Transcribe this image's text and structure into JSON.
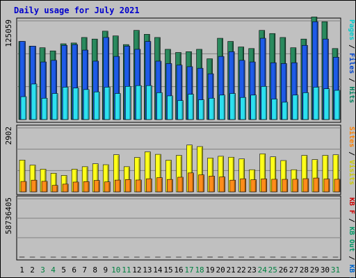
{
  "chart_data": {
    "type": "bar",
    "title": "Daily usage for July 2021",
    "categories": [
      "1",
      "2",
      "3",
      "4",
      "5",
      "6",
      "7",
      "8",
      "9",
      "10",
      "11",
      "12",
      "13",
      "14",
      "15",
      "16",
      "17",
      "18",
      "19",
      "20",
      "21",
      "22",
      "23",
      "24",
      "25",
      "26",
      "27",
      "28",
      "29",
      "30",
      "31"
    ],
    "weekend_categories": [
      "3",
      "4",
      "10",
      "11",
      "17",
      "18",
      "24",
      "25",
      "31"
    ],
    "panels": [
      {
        "id": "top",
        "max_label": "125059",
        "ylim": [
          0,
          125059
        ],
        "legend": [
          {
            "text": "Hits",
            "color": "#00805c"
          },
          {
            "text": " / ",
            "color": "#000000"
          },
          {
            "text": "Files",
            "color": "#0044cc"
          },
          {
            "text": " / ",
            "color": "#000000"
          },
          {
            "text": "Pages",
            "color": "#00cccc"
          }
        ],
        "series": [
          {
            "name": "Hits",
            "color": "#2a8a5e",
            "values": [
              99000,
              93000,
              91000,
              87000,
              96000,
              97000,
              104000,
              102000,
              112000,
              106000,
              95000,
              113000,
              108000,
              104000,
              89000,
              85000,
              86000,
              89000,
              77000,
              103000,
              99000,
              92000,
              90000,
              113000,
              109000,
              104000,
              91000,
              102000,
              130000,
              124000,
              90000
            ]
          },
          {
            "name": "Files",
            "color": "#1e5be8",
            "values": [
              99000,
              93000,
              73000,
              75000,
              94000,
              95000,
              88000,
              74000,
              104000,
              80000,
              93000,
              89000,
              99000,
              74000,
              71000,
              69000,
              67000,
              65000,
              58000,
              80000,
              86000,
              75000,
              73000,
              103000,
              72000,
              71000,
              72000,
              94000,
              124000,
              102000,
              79000
            ]
          },
          {
            "name": "Pages",
            "color": "#2ce0f0",
            "values": [
              29000,
              45000,
              27000,
              33000,
              41000,
              40000,
              38000,
              35000,
              41000,
              33000,
              42000,
              43000,
              43000,
              34000,
              30000,
              24000,
              32000,
              25000,
              27000,
              31000,
              33000,
              28000,
              31000,
              42000,
              26000,
              22000,
              31000,
              34000,
              41000,
              39000,
              37000
            ]
          }
        ]
      },
      {
        "id": "middle",
        "max_label": "2902",
        "ylim": [
          0,
          2902
        ],
        "legend": [
          {
            "text": "Visits",
            "color": "#cccc00"
          },
          {
            "text": " / ",
            "color": "#000000"
          },
          {
            "text": "Sites",
            "color": "#ff8000"
          }
        ],
        "series": [
          {
            "name": "Visits",
            "color": "#ffff1a",
            "values": [
              1440,
              1213,
              1027,
              843,
              743,
              1027,
              1140,
              1273,
              1230,
              1683,
              1140,
              1557,
              1813,
              1700,
              1433,
              1653,
              2123,
              2053,
              1533,
              1613,
              1570,
              1493,
              1003,
              1723,
              1587,
              1420,
              1003,
              1653,
              1463,
              1653,
              1680
            ]
          },
          {
            "name": "Sites",
            "color": "#ff8c1a",
            "values": [
              470,
              530,
              477,
              293,
              350,
              443,
              463,
              517,
              450,
              533,
              557,
              537,
              593,
              643,
              563,
              663,
              857,
              770,
              713,
              677,
              530,
              593,
              550,
              590,
              570,
              567,
              570,
              597,
              627,
              583,
              570
            ]
          }
        ]
      },
      {
        "id": "bottom",
        "max_label": "58736405",
        "ylim": [
          0,
          58736405
        ],
        "legend": [
          {
            "text": "KB In",
            "color": "#0066cc"
          },
          {
            "text": " / ",
            "color": "#000000"
          },
          {
            "text": "KB Out",
            "color": "#009966"
          },
          {
            "text": " / ",
            "color": "#000000"
          },
          {
            "text": "KB F",
            "color": "#cc0000"
          }
        ],
        "series": [
          {
            "name": "KB F",
            "color": "#f01a1a",
            "values": [
              77300,
              24700,
              17700,
              14200,
              16100,
              73700,
              26100,
              11500,
              62200,
              17000,
              15900,
              15900,
              18600,
              23100,
              38500,
              16500,
              38500,
              14800,
              64800,
              53800,
              41700,
              14800,
              39600,
              18600,
              38500,
              16000,
              25000,
              23100,
              49700,
              18700,
              18400
            ]
          }
        ]
      }
    ]
  }
}
